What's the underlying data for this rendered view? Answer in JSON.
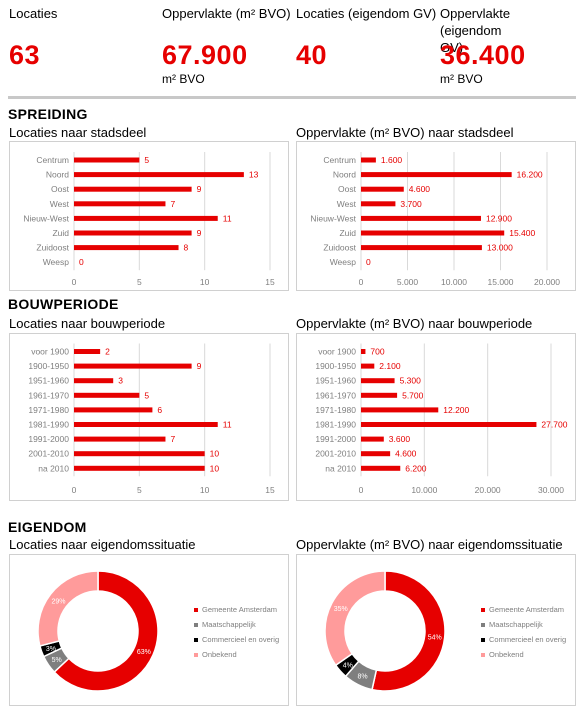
{
  "kpis": [
    {
      "label": "Locaties",
      "value": "63",
      "unit": ""
    },
    {
      "label": "Oppervlakte (m² BVO)",
      "value": "67.900",
      "unit": "m² BVO"
    },
    {
      "label": "Locaties (eigendom GV)",
      "value": "40",
      "unit": ""
    },
    {
      "label": "Oppervlakte\n(eigendom GV)",
      "value": "36.400",
      "unit": "m² BVO"
    }
  ],
  "sections": {
    "spreiding": "SPREIDING",
    "bouwperiode": "BOUWPERIODE",
    "eigendom": "EIGENDOM"
  },
  "colors": {
    "accent": "#e60000",
    "pink": "#ff9b9b",
    "gray": "#7f7f7f",
    "black": "#000000",
    "axis_text": "#7f7f7f"
  },
  "chart_data": [
    {
      "id": "loc-stadsdeel",
      "type": "bar",
      "orientation": "horizontal",
      "title": "Locaties naar stadsdeel",
      "categories": [
        "Centrum",
        "Noord",
        "Oost",
        "West",
        "Nieuw-West",
        "Zuid",
        "Zuidoost",
        "Weesp"
      ],
      "values": [
        5,
        13,
        9,
        7,
        11,
        9,
        8,
        0
      ],
      "value_labels": [
        "5",
        "13",
        "9",
        "7",
        "11",
        "9",
        "8",
        "0"
      ],
      "xlim": [
        0,
        15
      ],
      "ticks": [
        0,
        5,
        10,
        15
      ],
      "tick_labels": [
        "0",
        "5",
        "10",
        "15"
      ],
      "grid": true,
      "color": "#e60000"
    },
    {
      "id": "opp-stadsdeel",
      "type": "bar",
      "orientation": "horizontal",
      "title": "Oppervlakte (m² BVO) naar stadsdeel",
      "categories": [
        "Centrum",
        "Noord",
        "Oost",
        "West",
        "Nieuw-West",
        "Zuid",
        "Zuidoost",
        "Weesp"
      ],
      "values": [
        1600,
        16200,
        4600,
        3700,
        12900,
        15400,
        13000,
        0
      ],
      "value_labels": [
        "1.600",
        "16.200",
        "4.600",
        "3.700",
        "12.900",
        "15.400",
        "13.000",
        "0"
      ],
      "xlim": [
        0,
        20000
      ],
      "ticks": [
        0,
        5000,
        10000,
        15000,
        20000
      ],
      "tick_labels": [
        "0",
        "5.000",
        "10.000",
        "15.000",
        "20.000"
      ],
      "grid": true,
      "color": "#e60000"
    },
    {
      "id": "loc-bouwperiode",
      "type": "bar",
      "orientation": "horizontal",
      "title": "Locaties naar bouwperiode",
      "categories": [
        "voor 1900",
        "1900-1950",
        "1951-1960",
        "1961-1970",
        "1971-1980",
        "1981-1990",
        "1991-2000",
        "2001-2010",
        "na 2010"
      ],
      "values": [
        2,
        9,
        3,
        5,
        6,
        11,
        7,
        10,
        10
      ],
      "value_labels": [
        "2",
        "9",
        "3",
        "5",
        "6",
        "11",
        "7",
        "10",
        "10"
      ],
      "xlim": [
        0,
        15
      ],
      "ticks": [
        0,
        5,
        10,
        15
      ],
      "tick_labels": [
        "0",
        "5",
        "10",
        "15"
      ],
      "grid": true,
      "color": "#e60000"
    },
    {
      "id": "opp-bouwperiode",
      "type": "bar",
      "orientation": "horizontal",
      "title": "Oppervlakte (m² BVO) naar bouwperiode",
      "categories": [
        "voor 1900",
        "1900-1950",
        "1951-1960",
        "1961-1970",
        "1971-1980",
        "1981-1990",
        "1991-2000",
        "2001-2010",
        "na 2010"
      ],
      "values": [
        700,
        2100,
        5300,
        5700,
        12200,
        27700,
        3600,
        4600,
        6200
      ],
      "value_labels": [
        "700",
        "2.100",
        "5.300",
        "5.700",
        "12.200",
        "27.700",
        "3.600",
        "4.600",
        "6.200"
      ],
      "xlim": [
        0,
        30000
      ],
      "ticks": [
        0,
        10000,
        20000,
        30000
      ],
      "tick_labels": [
        "0",
        "10.000",
        "20.000",
        "30.000"
      ],
      "grid": true,
      "color": "#e60000"
    },
    {
      "id": "loc-eigendom",
      "type": "pie",
      "donut": true,
      "title": "Locaties naar eigendomssituatie",
      "labels": [
        "Gemeente Amsterdam",
        "Maatschappelijk",
        "Commercieel en overig",
        "Onbekend"
      ],
      "values": [
        63,
        5,
        3,
        29
      ],
      "value_labels": [
        "63%",
        "5%",
        "3%",
        "29%"
      ],
      "colors": [
        "#e60000",
        "#7f7f7f",
        "#000000",
        "#ff9b9b"
      ],
      "legend": "right"
    },
    {
      "id": "opp-eigendom",
      "type": "pie",
      "donut": true,
      "title": "Oppervlakte (m² BVO) naar eigendomssituatie",
      "labels": [
        "Gemeente Amsterdam",
        "Maatschappelijk",
        "Commercieel en overig",
        "Onbekend"
      ],
      "values": [
        54,
        8,
        4,
        35
      ],
      "value_labels": [
        "54%",
        "8%",
        "4%",
        "35%"
      ],
      "colors": [
        "#e60000",
        "#7f7f7f",
        "#000000",
        "#ff9b9b"
      ],
      "legend": "right"
    }
  ]
}
